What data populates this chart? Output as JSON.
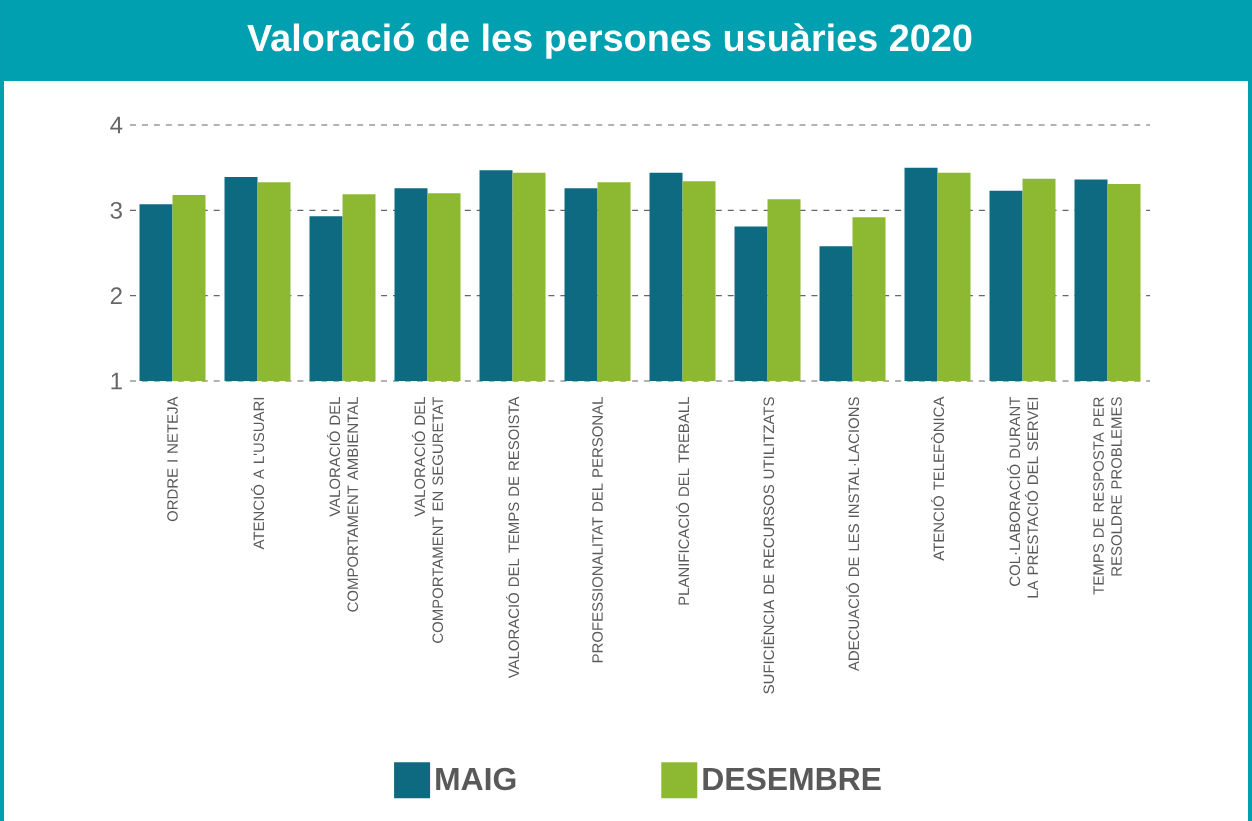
{
  "chart_data": {
    "type": "bar",
    "title": "Valoració de les persones usuàries 2020",
    "categories": [
      "ORDRE I NETEJA",
      "ATENCIÓ A L'USUARI",
      "VALORACIÓ DEL COMPORTAMENT AMBIENTAL",
      "VALORACIÓ DEL COMPORTAMENT EN SEGURETAT",
      "VALORACIÓ DEL TEMPS DE RESOISTA",
      "PROFESSIONALITAT DEL PERSONAL",
      "PLANIFICACIÓ DEL TREBALL",
      "SUFICIÈNCIA DE RECURSOS UTILITZATS",
      "ADECUACIÓ DE LES INSTAL·LACIONS",
      "ATENCIÓ TELEFÒNICA",
      "COL·LABORACIÓ DURANT LA PRESTACIÓ DEL SERVEI",
      "TEMPS DE RESPOSTA PER RESOLDRE PROBLEMES"
    ],
    "series": [
      {
        "name": "MAIG",
        "color": "#0e6a80",
        "values": [
          3.07,
          3.39,
          2.93,
          3.26,
          3.47,
          3.26,
          3.44,
          2.81,
          2.58,
          3.5,
          3.23,
          3.36
        ]
      },
      {
        "name": "DESEMBRE",
        "color": "#8cb832",
        "values": [
          3.18,
          3.33,
          3.19,
          3.2,
          3.44,
          3.33,
          3.34,
          3.13,
          2.92,
          3.44,
          3.37,
          3.31
        ]
      }
    ],
    "ylim": [
      1,
      4
    ],
    "yticks": [
      1,
      2,
      3,
      4
    ],
    "grid": "y",
    "legend": "bottom"
  }
}
